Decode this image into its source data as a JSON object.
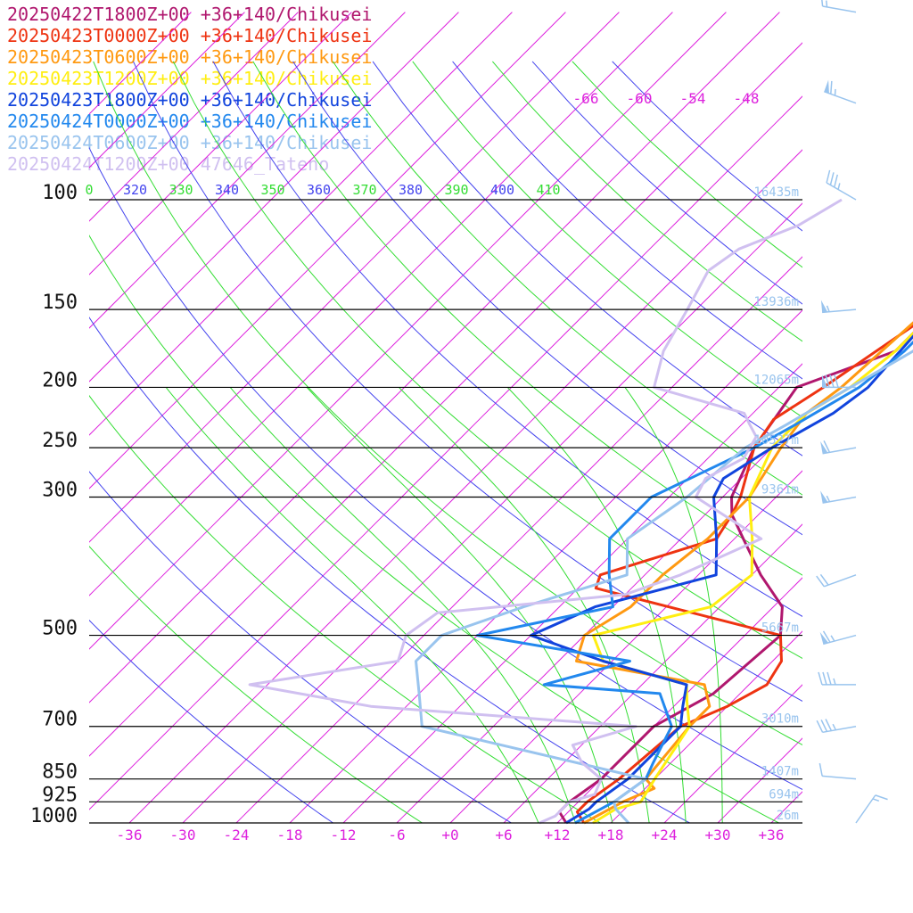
{
  "chart_data": {
    "type": "line",
    "xlabel": "",
    "ylabel": "",
    "pressure_levels": [
      100,
      150,
      200,
      250,
      300,
      500,
      700,
      850,
      925,
      1000
    ],
    "height_labels": [
      {
        "p": 100,
        "text": "16435m"
      },
      {
        "p": 150,
        "text": "13936m"
      },
      {
        "p": 200,
        "text": "12065m"
      },
      {
        "p": 250,
        "text": "10527m"
      },
      {
        "p": 300,
        "text": "9361m"
      },
      {
        "p": 500,
        "text": "5667m"
      },
      {
        "p": 700,
        "text": "3010m"
      },
      {
        "p": 850,
        "text": "1407m"
      },
      {
        "p": 925,
        "text": "694m"
      },
      {
        "p": 1000,
        "text": "26m"
      }
    ],
    "temperature_ticks": [
      "-36",
      "-30",
      "-24",
      "-18",
      "-12",
      "-6",
      "+0",
      "+6",
      "+12",
      "+18",
      "+24",
      "+30",
      "+36"
    ],
    "upper_isotherm_labels": [
      "-66",
      "-60",
      "-54",
      "-48"
    ],
    "theta_labels": [
      {
        "text": "0",
        "color": "#33dd33"
      },
      {
        "text": "320",
        "color": "#4444ee"
      },
      {
        "text": "330",
        "color": "#33dd33"
      },
      {
        "text": "340",
        "color": "#4444ee"
      },
      {
        "text": "350",
        "color": "#33dd33"
      },
      {
        "text": "360",
        "color": "#4444ee"
      },
      {
        "text": "370",
        "color": "#33dd33"
      },
      {
        "text": "380",
        "color": "#4444ee"
      },
      {
        "text": "390",
        "color": "#33dd33"
      },
      {
        "text": "400",
        "color": "#4444ee"
      },
      {
        "text": "410",
        "color": "#33dd33"
      }
    ],
    "series": [
      {
        "name": "20250422T1800Z+00 +36+140/Chikusei",
        "color": "#b0176e",
        "points": [
          [
            1000,
            13
          ],
          [
            960,
            11
          ],
          [
            925,
            11
          ],
          [
            850,
            12
          ],
          [
            700,
            12
          ],
          [
            620,
            15
          ],
          [
            500,
            16
          ],
          [
            450,
            13
          ],
          [
            400,
            7
          ],
          [
            350,
            1
          ],
          [
            320,
            -3
          ],
          [
            300,
            -5
          ],
          [
            250,
            -8
          ],
          [
            200,
            -10
          ],
          [
            175,
            -3
          ],
          [
            150,
            -3
          ],
          [
            125,
            0
          ],
          [
            100,
            3
          ],
          [
            85,
            8
          ],
          [
            70,
            20
          ],
          [
            58,
            32
          ]
        ]
      },
      {
        "name": "20250423T0000Z+00 +36+140/Chikusei",
        "color": "#ee3311",
        "points": [
          [
            1000,
            15
          ],
          [
            960,
            13
          ],
          [
            925,
            13
          ],
          [
            850,
            14
          ],
          [
            700,
            15
          ],
          [
            650,
            18
          ],
          [
            600,
            20
          ],
          [
            550,
            19
          ],
          [
            500,
            16
          ],
          [
            420,
            -10
          ],
          [
            400,
            -11
          ],
          [
            350,
            -2
          ],
          [
            320,
            -3
          ],
          [
            300,
            -4
          ],
          [
            250,
            -8
          ],
          [
            225,
            -9
          ],
          [
            200,
            -7
          ],
          [
            150,
            -3
          ],
          [
            125,
            -1
          ],
          [
            100,
            2
          ],
          [
            85,
            7
          ],
          [
            70,
            18
          ],
          [
            58,
            30
          ]
        ]
      },
      {
        "name": "20250423T0600Z+00 +36+140/Chikusei",
        "color": "#ff9911",
        "points": [
          [
            1000,
            15
          ],
          [
            925,
            17
          ],
          [
            880,
            19
          ],
          [
            850,
            17
          ],
          [
            700,
            16
          ],
          [
            650,
            16
          ],
          [
            600,
            13
          ],
          [
            550,
            -4
          ],
          [
            500,
            -6
          ],
          [
            450,
            -4
          ],
          [
            400,
            -4
          ],
          [
            350,
            -3
          ],
          [
            300,
            -3
          ],
          [
            250,
            -5
          ],
          [
            220,
            -6
          ],
          [
            200,
            -5
          ],
          [
            150,
            -4
          ],
          [
            130,
            -6
          ],
          [
            110,
            -3
          ],
          [
            100,
            -1
          ],
          [
            85,
            7
          ],
          [
            70,
            20
          ],
          [
            58,
            33
          ]
        ]
      },
      {
        "name": "20250423T1200Z+00 +36+140/Chikusei",
        "color": "#ffee11",
        "points": [
          [
            1000,
            16
          ],
          [
            950,
            17
          ],
          [
            925,
            19
          ],
          [
            850,
            18
          ],
          [
            700,
            16
          ],
          [
            640,
            13
          ],
          [
            600,
            11
          ],
          [
            550,
            -1
          ],
          [
            500,
            -5
          ],
          [
            450,
            5
          ],
          [
            400,
            6
          ],
          [
            350,
            2
          ],
          [
            300,
            -3
          ],
          [
            250,
            -6
          ],
          [
            220,
            -6
          ],
          [
            200,
            -4
          ],
          [
            175,
            -3
          ],
          [
            150,
            -3
          ],
          [
            130,
            -5
          ],
          [
            115,
            -6
          ],
          [
            100,
            -3
          ],
          [
            85,
            7
          ],
          [
            70,
            22
          ],
          [
            58,
            35
          ]
        ]
      },
      {
        "name": "20250423T1800Z+00 +36+140/Chikusei",
        "color": "#1144dd",
        "points": [
          [
            1000,
            13
          ],
          [
            950,
            14
          ],
          [
            925,
            14
          ],
          [
            850,
            15
          ],
          [
            700,
            15
          ],
          [
            650,
            13
          ],
          [
            600,
            11
          ],
          [
            550,
            -1
          ],
          [
            500,
            -12
          ],
          [
            450,
            -8
          ],
          [
            400,
            2
          ],
          [
            350,
            -2
          ],
          [
            300,
            -7
          ],
          [
            280,
            -8
          ],
          [
            250,
            -6
          ],
          [
            220,
            -3
          ],
          [
            200,
            -2
          ],
          [
            150,
            -3
          ],
          [
            130,
            -4
          ],
          [
            110,
            -2
          ],
          [
            100,
            0
          ],
          [
            85,
            5
          ],
          [
            70,
            18
          ],
          [
            58,
            32
          ]
        ]
      },
      {
        "name": "20250424T0000Z+00 +36+140/Chikusei",
        "color": "#2288ee",
        "points": [
          [
            1000,
            14
          ],
          [
            925,
            16
          ],
          [
            850,
            17
          ],
          [
            800,
            16
          ],
          [
            700,
            14
          ],
          [
            620,
            9
          ],
          [
            600,
            -5
          ],
          [
            550,
            2
          ],
          [
            500,
            -18
          ],
          [
            450,
            -6
          ],
          [
            400,
            -10
          ],
          [
            350,
            -14
          ],
          [
            300,
            -14
          ],
          [
            250,
            -8
          ],
          [
            230,
            -6
          ],
          [
            200,
            -3
          ],
          [
            175,
            -2
          ],
          [
            150,
            -2
          ],
          [
            125,
            -2
          ],
          [
            100,
            -1
          ],
          [
            85,
            6
          ],
          [
            70,
            19
          ],
          [
            58,
            33
          ]
        ]
      },
      {
        "name": "20250424T0600Z+00 +36+140/Chikusei",
        "color": "#99c4ee",
        "points": [
          [
            1000,
            20
          ],
          [
            950,
            17
          ],
          [
            925,
            16
          ],
          [
            850,
            17
          ],
          [
            700,
            -14
          ],
          [
            620,
            -18
          ],
          [
            550,
            -22
          ],
          [
            500,
            -22
          ],
          [
            450,
            -16
          ],
          [
            400,
            -8
          ],
          [
            350,
            -12
          ],
          [
            300,
            -10
          ],
          [
            250,
            -9
          ],
          [
            230,
            -7
          ],
          [
            200,
            -4
          ],
          [
            175,
            -1
          ],
          [
            150,
            -1
          ],
          [
            130,
            -2
          ],
          [
            110,
            -1
          ],
          [
            100,
            -1
          ],
          [
            90,
            -2
          ],
          [
            80,
            3
          ],
          [
            70,
            15
          ],
          [
            58,
            28
          ]
        ]
      },
      {
        "name": "20250424T1200Z+00 47646_Tateno",
        "color": "#d0c0f0",
        "points": [
          [
            1000,
            10
          ],
          [
            975,
            11
          ],
          [
            950,
            11
          ],
          [
            925,
            11
          ],
          [
            900,
            13
          ],
          [
            850,
            12
          ],
          [
            800,
            8
          ],
          [
            750,
            5
          ],
          [
            700,
            10
          ],
          [
            650,
            -22
          ],
          [
            600,
            -38
          ],
          [
            550,
            -24
          ],
          [
            500,
            -26
          ],
          [
            460,
            -25
          ],
          [
            430,
            -6
          ],
          [
            400,
            -2
          ],
          [
            350,
            3
          ],
          [
            320,
            -4
          ],
          [
            300,
            -9
          ],
          [
            280,
            -10
          ],
          [
            260,
            -8
          ],
          [
            240,
            -9
          ],
          [
            230,
            -11
          ],
          [
            220,
            -13
          ],
          [
            200,
            -26
          ],
          [
            175,
            -29
          ],
          [
            150,
            -31
          ],
          [
            130,
            -33
          ],
          [
            120,
            -32
          ],
          [
            110,
            -28
          ],
          [
            100,
            -26
          ]
        ]
      }
    ],
    "wind_barbs": [
      {
        "p": 50,
        "dir": 280,
        "speed": 15
      },
      {
        "p": 70,
        "dir": 290,
        "speed": 65
      },
      {
        "p": 100,
        "dir": 300,
        "speed": 35
      },
      {
        "p": 150,
        "dir": 265,
        "speed": 55
      },
      {
        "p": 200,
        "dir": 270,
        "speed": 80
      },
      {
        "p": 250,
        "dir": 260,
        "speed": 60
      },
      {
        "p": 300,
        "dir": 260,
        "speed": 55
      },
      {
        "p": 400,
        "dir": 250,
        "speed": 20
      },
      {
        "p": 500,
        "dir": 255,
        "speed": 65
      },
      {
        "p": 600,
        "dir": 270,
        "speed": 35
      },
      {
        "p": 700,
        "dir": 260,
        "speed": 35
      },
      {
        "p": 850,
        "dir": 275,
        "speed": 10
      },
      {
        "p": 1000,
        "dir": 35,
        "speed": 15
      }
    ]
  },
  "style": {
    "isobar_color": "#000000",
    "isotherm_color": "#dd22dd",
    "dry_adiabat_color": "#4444ee",
    "moist_adiabat_color": "#33dd33",
    "height_label_color": "#99c4ee",
    "wind_barb_color": "#99c4ee"
  }
}
